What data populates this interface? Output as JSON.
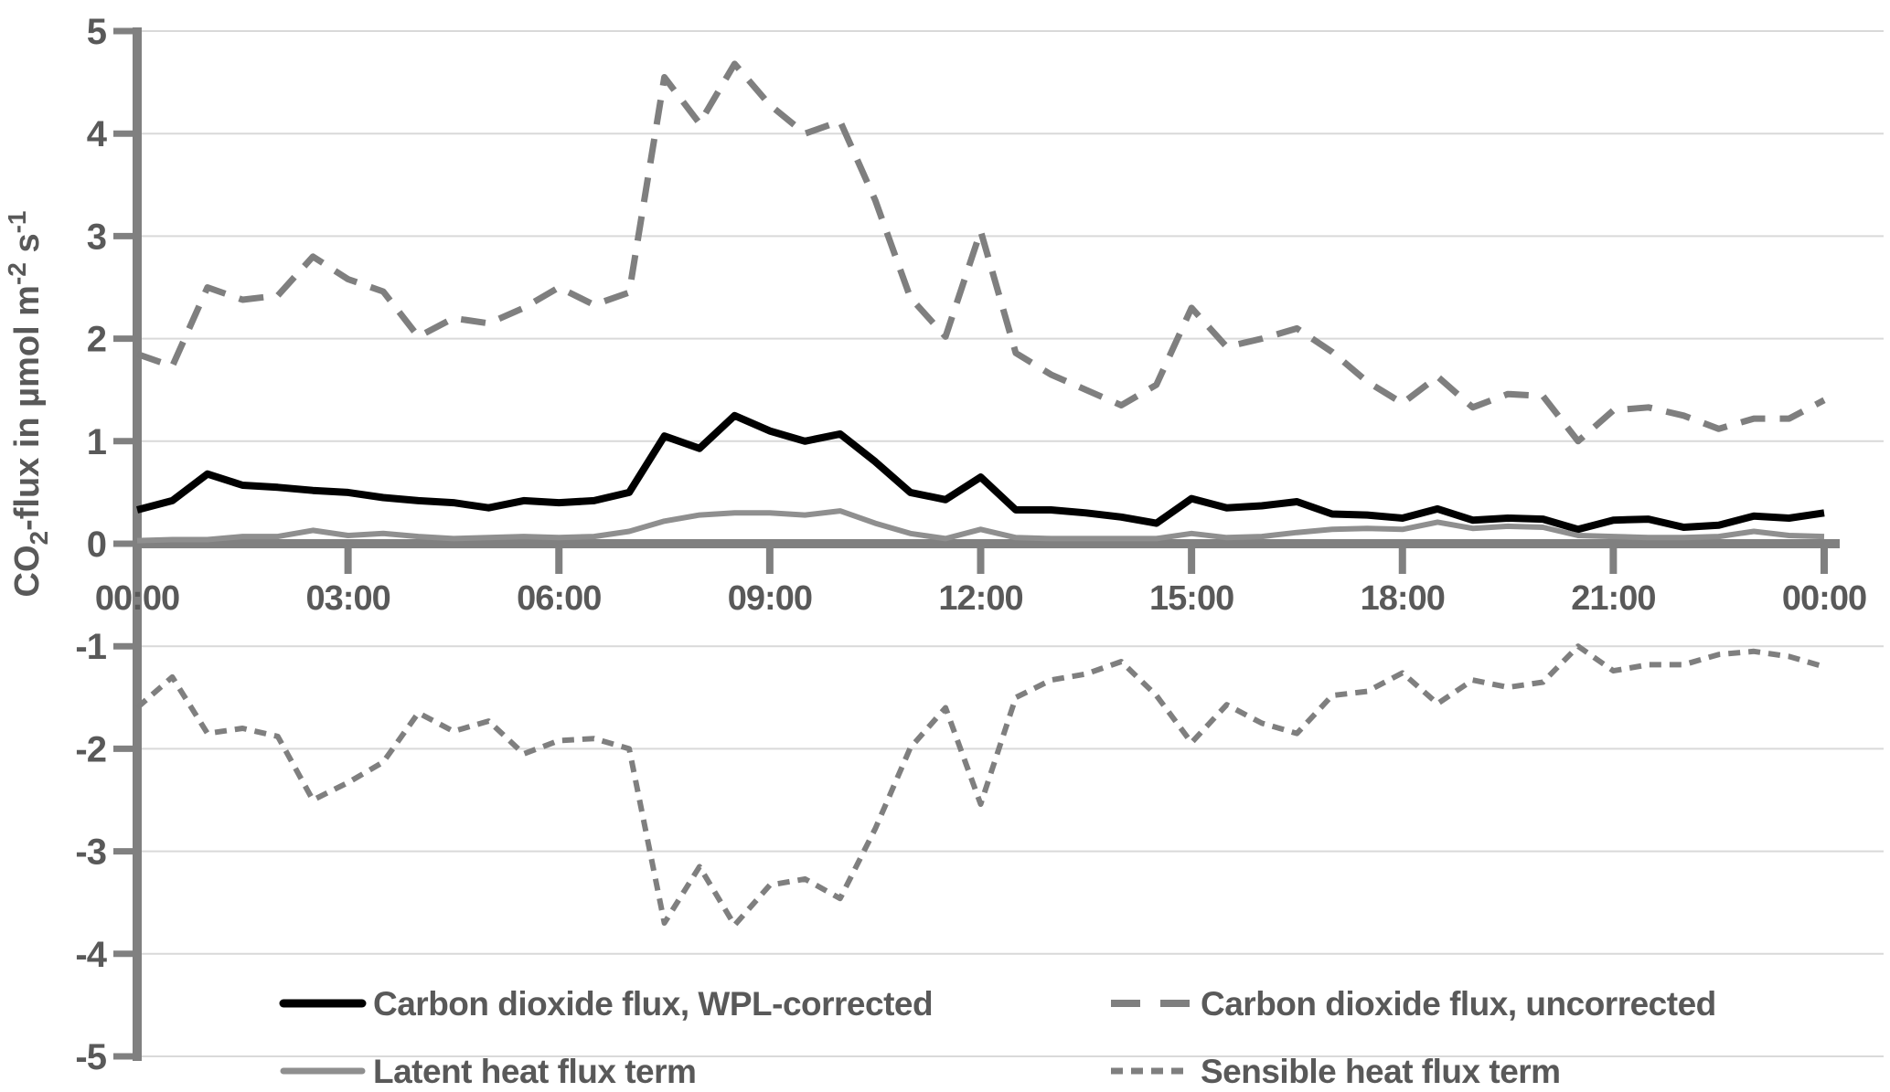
{
  "chart_data": {
    "type": "line",
    "title": "",
    "xlabel": "",
    "ylabel": "CO₂-flux in µmol m⁻² s⁻¹",
    "ylabel_parts": [
      {
        "text": "CO",
        "script": "normal"
      },
      {
        "text": "2",
        "script": "sub"
      },
      {
        "text": "-flux in µmol m",
        "script": "normal"
      },
      {
        "text": "-2",
        "script": "sup"
      },
      {
        "text": " s",
        "script": "normal"
      },
      {
        "text": "-1",
        "script": "sup"
      }
    ],
    "x_start_hour": 0,
    "x_interval_hours": 0.5,
    "x_tick_labels": [
      "00:00",
      "03:00",
      "06:00",
      "09:00",
      "12:00",
      "15:00",
      "18:00",
      "21:00",
      "00:00"
    ],
    "ylim": [
      -5,
      5
    ],
    "ytick_step": 1,
    "ytick_labels": [
      "5",
      "4",
      "3",
      "2",
      "1",
      "0",
      "-1",
      "-2",
      "-3",
      "-4",
      "-5"
    ],
    "grid": true,
    "legend_position": "bottom-inside-two-columns",
    "colors": {
      "axis": "#808080",
      "grid": "#d9d9d9",
      "text": "#595959",
      "background": "#ffffff"
    },
    "series": [
      {
        "name": "Carbon dioxide flux, WPL-corrected",
        "color": "#000000",
        "dash": "solid",
        "width": 8,
        "values": [
          0.33,
          0.42,
          0.68,
          0.57,
          0.55,
          0.52,
          0.5,
          0.45,
          0.42,
          0.4,
          0.35,
          0.42,
          0.4,
          0.42,
          0.5,
          1.05,
          0.93,
          1.25,
          1.1,
          1.0,
          1.07,
          0.8,
          0.5,
          0.43,
          0.65,
          0.33,
          0.33,
          0.3,
          0.26,
          0.2,
          0.44,
          0.35,
          0.37,
          0.41,
          0.29,
          0.28,
          0.25,
          0.34,
          0.23,
          0.25,
          0.24,
          0.14,
          0.23,
          0.24,
          0.16,
          0.18,
          0.27,
          0.25,
          0.3
        ]
      },
      {
        "name": "Carbon dioxide flux, uncorrected",
        "color": "#7f7f7f",
        "dash": "long-dash",
        "width": 7,
        "values": [
          1.85,
          1.73,
          2.5,
          2.38,
          2.42,
          2.8,
          2.58,
          2.46,
          2.02,
          2.2,
          2.15,
          2.3,
          2.5,
          2.33,
          2.45,
          4.55,
          4.1,
          4.68,
          4.28,
          4.0,
          4.12,
          3.35,
          2.4,
          2.02,
          3.05,
          1.86,
          1.65,
          1.5,
          1.35,
          1.55,
          2.3,
          1.92,
          2.0,
          2.1,
          1.87,
          1.58,
          1.37,
          1.63,
          1.33,
          1.46,
          1.44,
          1.0,
          1.3,
          1.33,
          1.25,
          1.12,
          1.22,
          1.22,
          1.4
        ]
      },
      {
        "name": "Latent heat flux term",
        "color": "#8f8f8f",
        "dash": "solid",
        "width": 6,
        "values": [
          0.03,
          0.04,
          0.04,
          0.07,
          0.07,
          0.13,
          0.08,
          0.1,
          0.07,
          0.05,
          0.06,
          0.07,
          0.06,
          0.07,
          0.12,
          0.22,
          0.28,
          0.3,
          0.3,
          0.28,
          0.32,
          0.2,
          0.1,
          0.05,
          0.14,
          0.06,
          0.05,
          0.05,
          0.05,
          0.05,
          0.1,
          0.06,
          0.07,
          0.11,
          0.14,
          0.15,
          0.14,
          0.21,
          0.15,
          0.17,
          0.16,
          0.08,
          0.07,
          0.06,
          0.06,
          0.07,
          0.12,
          0.08,
          0.07
        ]
      },
      {
        "name": "Sensible heat flux term",
        "color": "#7f7f7f",
        "dash": "short-dash",
        "width": 6,
        "values": [
          -1.6,
          -1.3,
          -1.85,
          -1.8,
          -1.88,
          -2.5,
          -2.33,
          -2.13,
          -1.65,
          -1.83,
          -1.73,
          -2.05,
          -1.92,
          -1.9,
          -2.0,
          -3.7,
          -3.15,
          -3.72,
          -3.33,
          -3.27,
          -3.46,
          -2.78,
          -1.99,
          -1.6,
          -2.54,
          -1.5,
          -1.33,
          -1.27,
          -1.15,
          -1.48,
          -1.94,
          -1.57,
          -1.75,
          -1.85,
          -1.48,
          -1.44,
          -1.26,
          -1.56,
          -1.33,
          -1.4,
          -1.35,
          -1.0,
          -1.24,
          -1.18,
          -1.18,
          -1.08,
          -1.05,
          -1.1,
          -1.2
        ]
      }
    ]
  }
}
